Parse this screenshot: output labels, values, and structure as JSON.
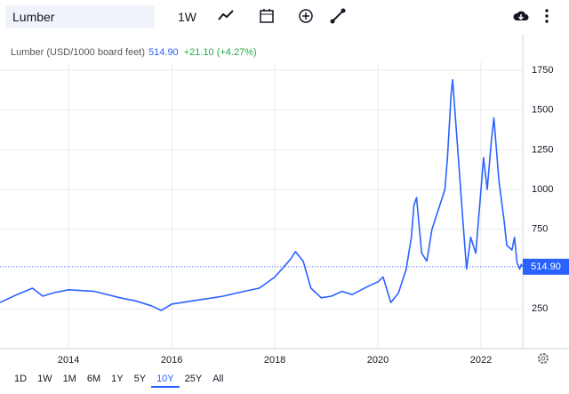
{
  "toolbar": {
    "search": "Lumber",
    "interval": "1W"
  },
  "ranges": {
    "items": [
      "1D",
      "1W",
      "1M",
      "6M",
      "1Y",
      "5Y",
      "10Y",
      "25Y",
      "All"
    ],
    "active": "10Y"
  },
  "chart_data": {
    "type": "line",
    "title": "Lumber (USD/1000 board feet)",
    "change": "+21.10 (+4.27%)",
    "price_line": {
      "value": 514.9,
      "label": "514.90"
    },
    "color": "#2962ff",
    "x": [
      2012.67,
      2013.0,
      2013.3,
      2013.5,
      2013.7,
      2014.0,
      2014.5,
      2015.0,
      2015.3,
      2015.6,
      2015.8,
      2016.0,
      2016.4,
      2016.8,
      2017.0,
      2017.4,
      2017.7,
      2018.0,
      2018.3,
      2018.4,
      2018.55,
      2018.7,
      2018.9,
      2019.1,
      2019.3,
      2019.5,
      2019.8,
      2020.0,
      2020.1,
      2020.25,
      2020.4,
      2020.55,
      2020.65,
      2020.7,
      2020.75,
      2020.85,
      2020.95,
      2021.05,
      2021.2,
      2021.3,
      2021.35,
      2021.42,
      2021.45,
      2021.55,
      2021.65,
      2021.72,
      2021.8,
      2021.9,
      2022.0,
      2022.05,
      2022.12,
      2022.2,
      2022.25,
      2022.35,
      2022.45,
      2022.5,
      2022.6,
      2022.65,
      2022.7,
      2022.75,
      2022.78,
      2022.8
    ],
    "values": [
      290,
      340,
      380,
      330,
      350,
      370,
      360,
      320,
      300,
      270,
      240,
      280,
      300,
      320,
      330,
      360,
      380,
      450,
      560,
      610,
      550,
      380,
      320,
      330,
      360,
      340,
      390,
      420,
      450,
      290,
      350,
      500,
      700,
      900,
      950,
      600,
      550,
      750,
      900,
      1000,
      1200,
      1600,
      1690,
      1250,
      800,
      500,
      700,
      600,
      1000,
      1200,
      1000,
      1300,
      1450,
      1050,
      800,
      650,
      620,
      700,
      540,
      500,
      530,
      515
    ],
    "xlim": [
      2012.67,
      2022.81
    ],
    "xticks": [
      2014,
      2016,
      2018,
      2020,
      2022
    ],
    "ylim": [
      0,
      1800
    ],
    "yticks": [
      250,
      750,
      1000,
      1250,
      1500,
      1750
    ],
    "grid": true
  }
}
